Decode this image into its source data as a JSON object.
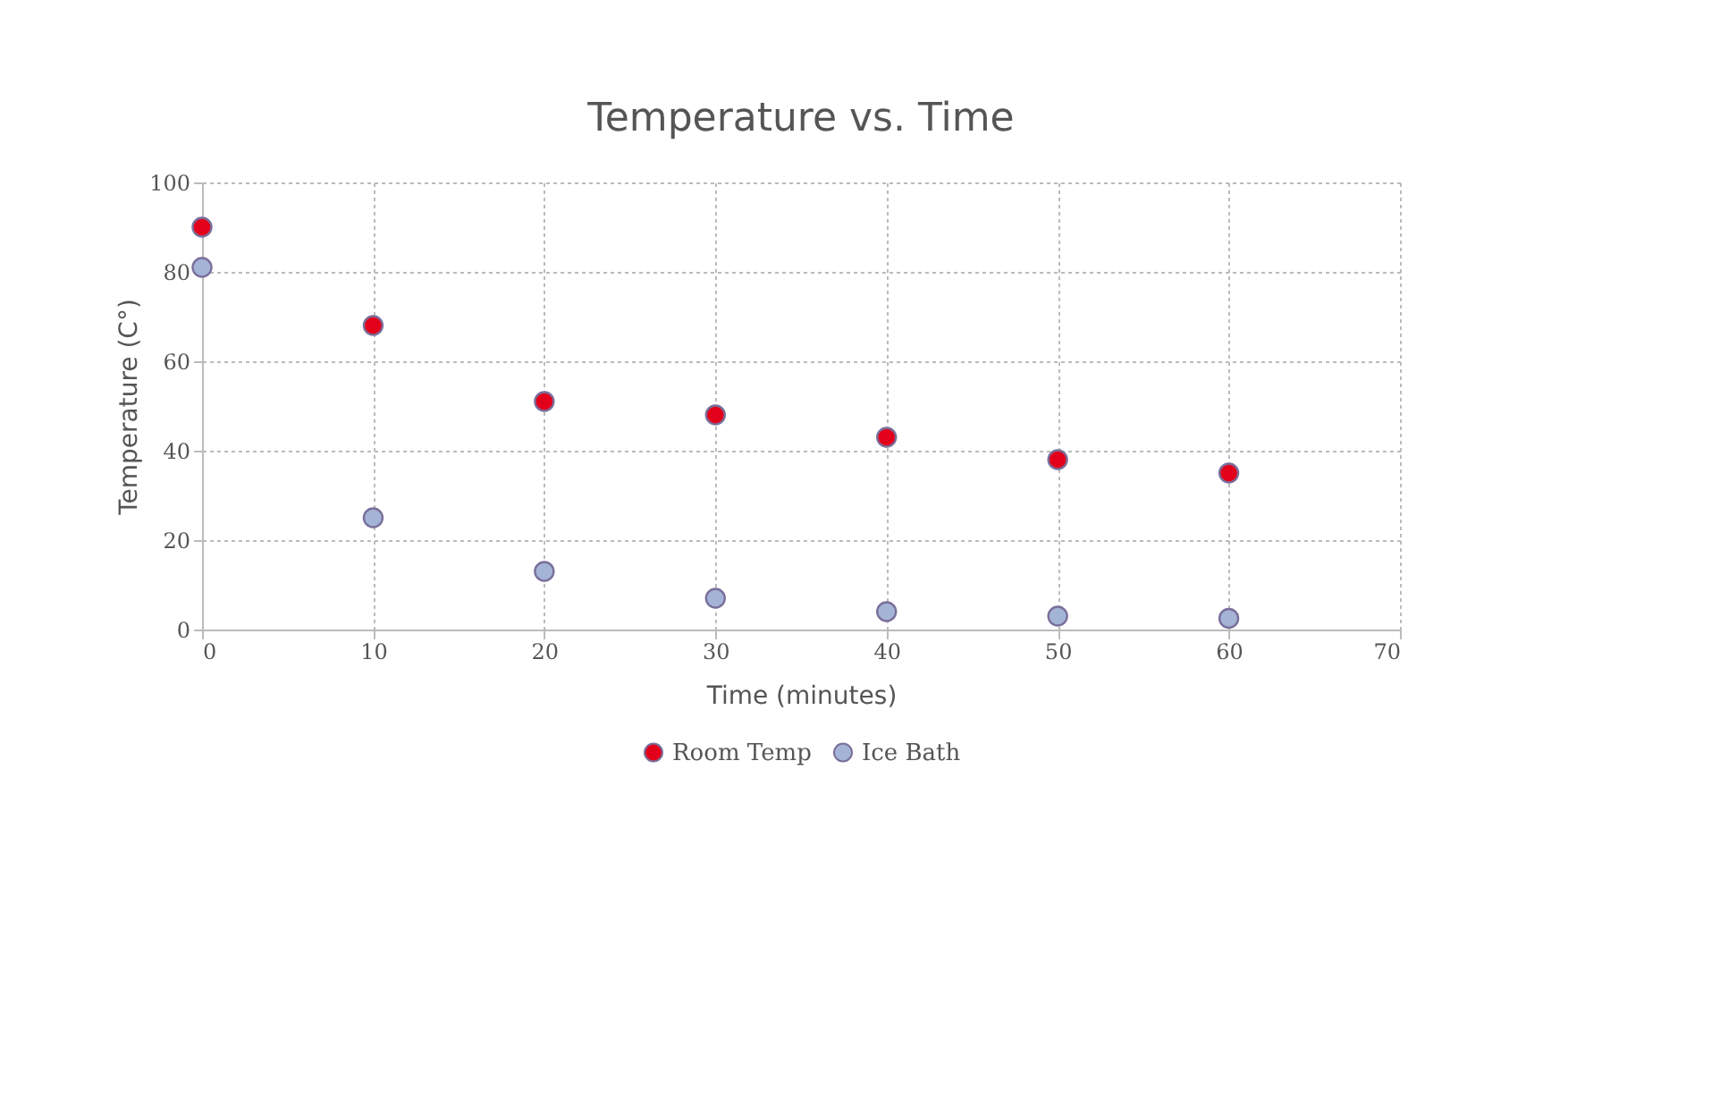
{
  "chart_data": {
    "type": "scatter",
    "title": "Temperature vs. Time",
    "xlabel": "Time (minutes)",
    "ylabel": "Temperature (C°)",
    "x": [
      0,
      10,
      20,
      30,
      40,
      50,
      60
    ],
    "series": [
      {
        "name": "Room Temp",
        "color": "#e3001b",
        "values": [
          90,
          68,
          51,
          48,
          43,
          38,
          35
        ]
      },
      {
        "name": "Ice Bath",
        "color": "#a4b4d6",
        "values": [
          81,
          25,
          13,
          7,
          4,
          3,
          2.5
        ]
      }
    ],
    "xlim": [
      0,
      70
    ],
    "xticks": [
      0,
      10,
      20,
      30,
      40,
      50,
      60,
      70
    ],
    "ylim": [
      0,
      100
    ],
    "yticks": [
      0,
      20,
      40,
      60,
      80,
      100
    ],
    "grid": true,
    "legend": "bottom",
    "marker": "circle"
  }
}
